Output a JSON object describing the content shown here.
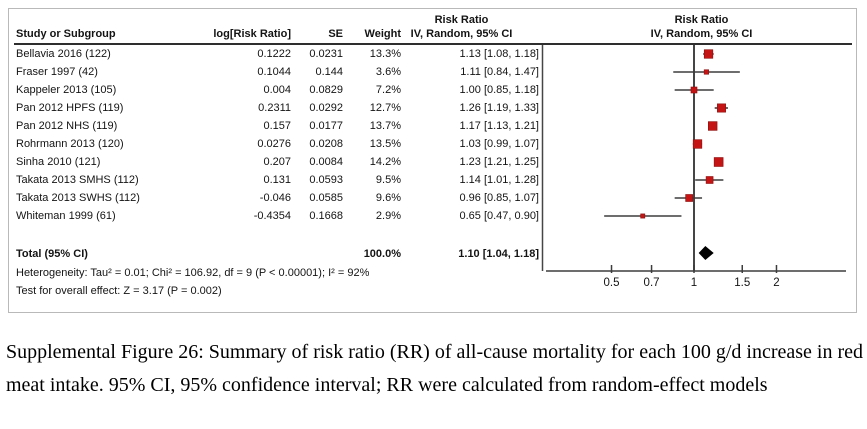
{
  "ui": {
    "col_headers": {
      "study": "Study or Subgroup",
      "log_rr": "log[Risk Ratio]",
      "se": "SE",
      "weight": "Weight",
      "rr_group_text": "Risk Ratio",
      "rr_sub_text": "IV, Random, 95% CI",
      "rr_group_plot": "Risk Ratio",
      "rr_sub_plot": "IV, Random, 95% CI"
    },
    "total_row": {
      "label": "Total (95% CI)",
      "weight": "100.0%",
      "ci_text": "1.10 [1.04, 1.18]"
    },
    "heterogeneity": "Heterogeneity: Tau² = 0.01; Chi² = 106.92, df = 9 (P < 0.00001); I² = 92%",
    "overall_effect": "Test for overall effect: Z = 3.17 (P = 0.002)",
    "caption": "Supplemental Figure 26: Summary of risk ratio (RR) of all-cause mortality for each 100 g/d increase in red meat intake. 95% CI, 95% confidence interval; RR were calculated from random-effect models",
    "colors": {
      "marker_red": "#c41414",
      "diamond_black": "#000000",
      "line_gray": "#454545"
    }
  },
  "chart_data": {
    "type": "forest",
    "effect_measure": "Risk Ratio, IV, Random, 95% CI",
    "x_scale": "log",
    "x_ticks": [
      "0.5",
      "0.7",
      "1",
      "1.5",
      "2"
    ],
    "reference_line": 1,
    "studies": [
      {
        "study": "Bellavia 2016 (122)",
        "log_rr": "0.1222",
        "se": "0.0231",
        "weight": "13.3%",
        "weight_pct": 13.3,
        "ci_text": "1.13 [1.08, 1.18]",
        "rr": 1.13,
        "lo": 1.08,
        "hi": 1.18
      },
      {
        "study": "Fraser 1997 (42)",
        "log_rr": "0.1044",
        "se": "0.144",
        "weight": "3.6%",
        "weight_pct": 3.6,
        "ci_text": "1.11 [0.84, 1.47]",
        "rr": 1.11,
        "lo": 0.84,
        "hi": 1.47
      },
      {
        "study": "Kappeler 2013 (105)",
        "log_rr": "0.004",
        "se": "0.0829",
        "weight": "7.2%",
        "weight_pct": 7.2,
        "ci_text": "1.00 [0.85, 1.18]",
        "rr": 1.0,
        "lo": 0.85,
        "hi": 1.18
      },
      {
        "study": "Pan 2012 HPFS (119)",
        "log_rr": "0.2311",
        "se": "0.0292",
        "weight": "12.7%",
        "weight_pct": 12.7,
        "ci_text": "1.26 [1.19, 1.33]",
        "rr": 1.26,
        "lo": 1.19,
        "hi": 1.33
      },
      {
        "study": "Pan 2012 NHS (119)",
        "log_rr": "0.157",
        "se": "0.0177",
        "weight": "13.7%",
        "weight_pct": 13.7,
        "ci_text": "1.17 [1.13, 1.21]",
        "rr": 1.17,
        "lo": 1.13,
        "hi": 1.21
      },
      {
        "study": "Rohrmann 2013 (120)",
        "log_rr": "0.0276",
        "se": "0.0208",
        "weight": "13.5%",
        "weight_pct": 13.5,
        "ci_text": "1.03 [0.99, 1.07]",
        "rr": 1.03,
        "lo": 0.99,
        "hi": 1.07
      },
      {
        "study": "Sinha 2010 (121)",
        "log_rr": "0.207",
        "se": "0.0084",
        "weight": "14.2%",
        "weight_pct": 14.2,
        "ci_text": "1.23 [1.21, 1.25]",
        "rr": 1.23,
        "lo": 1.21,
        "hi": 1.25
      },
      {
        "study": "Takata 2013 SMHS (112)",
        "log_rr": "0.131",
        "se": "0.0593",
        "weight": "9.5%",
        "weight_pct": 9.5,
        "ci_text": "1.14 [1.01, 1.28]",
        "rr": 1.14,
        "lo": 1.01,
        "hi": 1.28
      },
      {
        "study": "Takata 2013 SWHS (112)",
        "log_rr": "-0.046",
        "se": "0.0585",
        "weight": "9.6%",
        "weight_pct": 9.6,
        "ci_text": "0.96 [0.85, 1.07]",
        "rr": 0.96,
        "lo": 0.85,
        "hi": 1.07
      },
      {
        "study": "Whiteman 1999 (61)",
        "log_rr": "-0.4354",
        "se": "0.1668",
        "weight": "2.9%",
        "weight_pct": 2.9,
        "ci_text": "0.65 [0.47, 0.90]",
        "rr": 0.65,
        "lo": 0.47,
        "hi": 0.9
      }
    ],
    "total": {
      "rr": 1.1,
      "lo": 1.04,
      "hi": 1.18,
      "weight_pct": 100.0
    }
  }
}
